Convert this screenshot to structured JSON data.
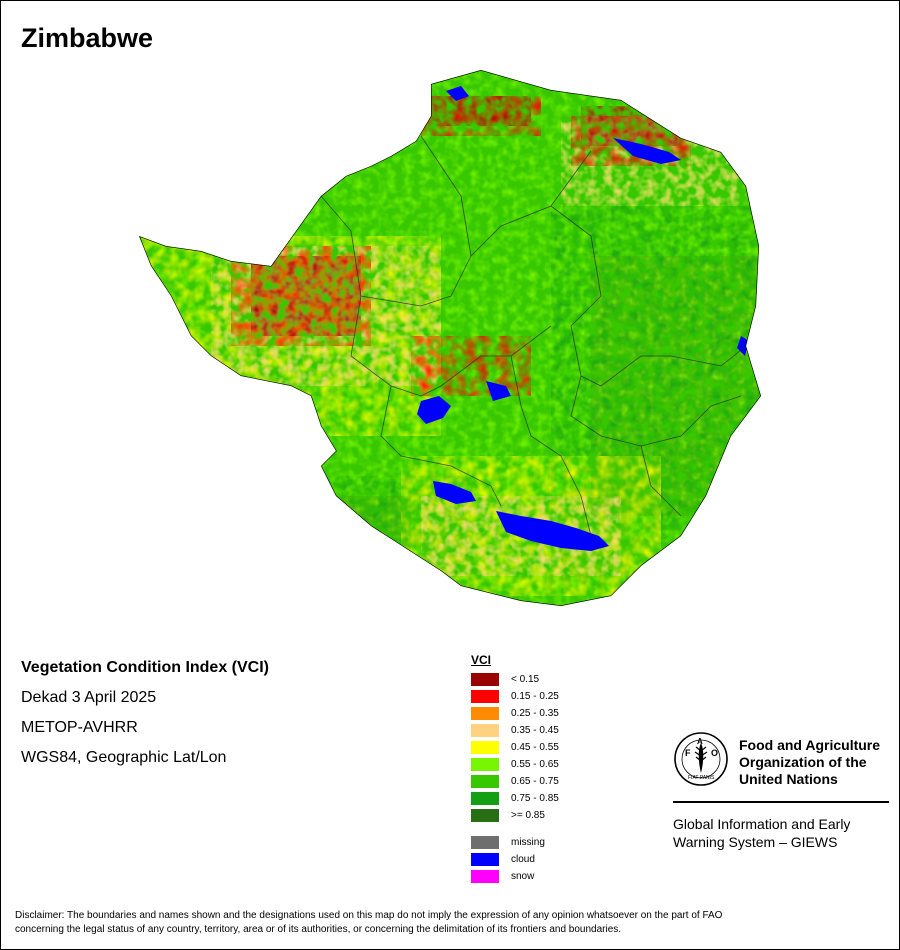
{
  "map": {
    "title": "Zimbabwe",
    "country": "Zimbabwe"
  },
  "info": {
    "index_name": "Vegetation Condition Index (VCI)",
    "period": "Dekad 3 April 2025",
    "sensor": "METOP-AVHRR",
    "projection": "WGS84, Geographic Lat/Lon"
  },
  "legend": {
    "title": "VCI",
    "classes": [
      {
        "label": "< 0.15",
        "color": "#9b0000"
      },
      {
        "label": "0.15 - 0.25",
        "color": "#ff0000"
      },
      {
        "label": "0.25 - 0.35",
        "color": "#ff8c00"
      },
      {
        "label": "0.35 - 0.45",
        "color": "#ffd27f"
      },
      {
        "label": "0.45 - 0.55",
        "color": "#ffff00"
      },
      {
        "label": "0.55 - 0.65",
        "color": "#78f500"
      },
      {
        "label": "0.65 - 0.75",
        "color": "#37c800"
      },
      {
        "label": "0.75 - 0.85",
        "color": "#14a014"
      },
      {
        "label": ">= 0.85",
        "color": "#286e14"
      }
    ],
    "special": [
      {
        "label": "missing",
        "color": "#6e6e6e"
      },
      {
        "label": "cloud",
        "color": "#0000ff"
      },
      {
        "label": "snow",
        "color": "#ff00ff"
      }
    ]
  },
  "organization": {
    "name_line1": "Food and Agriculture",
    "name_line2": "Organization of the",
    "name_line3": "United Nations",
    "logo_text_top": "FAO",
    "logo_text_motto": "FIAT PANIS",
    "system_line1": "Global Information and Early",
    "system_line2": "Warning System – GIEWS"
  },
  "disclaimer": {
    "line1": "Disclaimer: The boundaries and names shown and the designations used on this map do not imply the expression of any opinion whatsoever on the part of FAO",
    "line2": "concerning the legal status of any country, territory, area or of its authorities, or concerning the delimitation of its frontiers and boundaries."
  }
}
